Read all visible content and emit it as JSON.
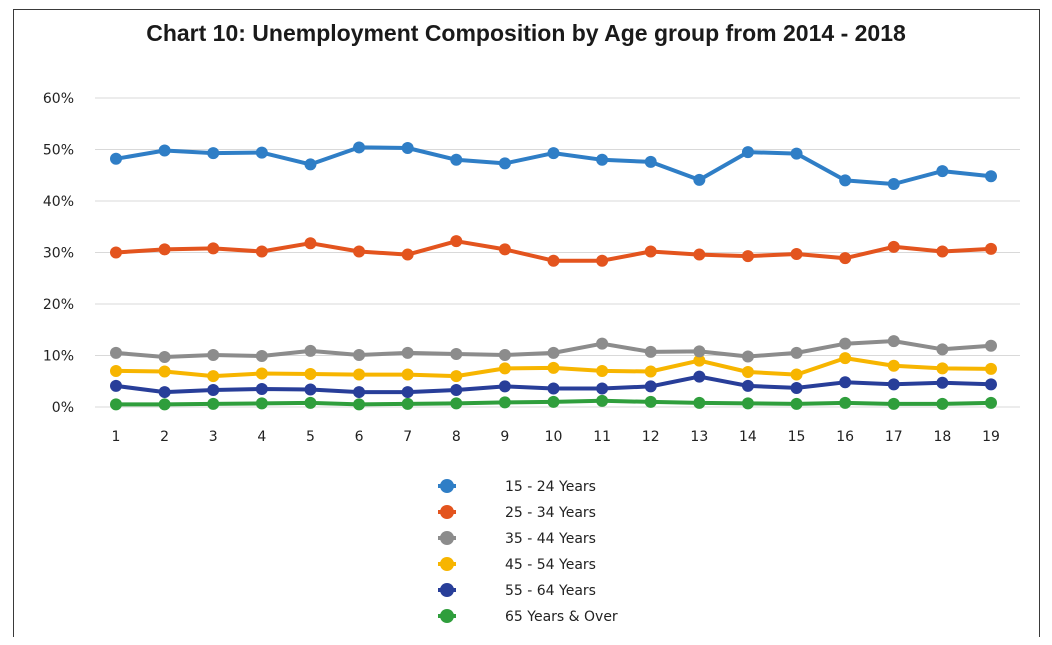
{
  "chart_data": {
    "type": "line",
    "title": "Chart 10: Unemployment Composition by Age group from 2014 - 2018",
    "xlabel": "",
    "ylabel": "",
    "x": [
      1,
      2,
      3,
      4,
      5,
      6,
      7,
      8,
      9,
      10,
      11,
      12,
      13,
      14,
      15,
      16,
      17,
      18,
      19
    ],
    "y_ticks": [
      "0%",
      "10%",
      "20%",
      "30%",
      "40%",
      "50%",
      "60%"
    ],
    "ylim": [
      0,
      60
    ],
    "grid": true,
    "legend_position": "bottom",
    "series": [
      {
        "name": "15 - 24 Years",
        "color": "#2f7ec6",
        "values": [
          48.2,
          49.8,
          49.3,
          49.4,
          47.1,
          50.4,
          50.3,
          48.0,
          47.3,
          49.3,
          48.0,
          47.6,
          44.1,
          49.5,
          49.2,
          44.0,
          43.3,
          45.8,
          44.8
        ]
      },
      {
        "name": "25 - 34 Years",
        "color": "#e3541e",
        "values": [
          30.0,
          30.6,
          30.8,
          30.2,
          31.8,
          30.2,
          29.6,
          32.2,
          30.6,
          28.4,
          28.4,
          30.2,
          29.6,
          29.3,
          29.7,
          28.9,
          31.1,
          30.2,
          30.7
        ]
      },
      {
        "name": "35 - 44 Years",
        "color": "#8c8c8c",
        "values": [
          10.5,
          9.7,
          10.1,
          9.9,
          10.9,
          10.1,
          10.5,
          10.3,
          10.1,
          10.5,
          12.3,
          10.7,
          10.8,
          9.8,
          10.5,
          12.3,
          12.8,
          11.2,
          11.9
        ]
      },
      {
        "name": "45 - 54 Years",
        "color": "#f7b500",
        "values": [
          7.0,
          6.9,
          6.0,
          6.5,
          6.4,
          6.3,
          6.3,
          6.0,
          7.5,
          7.6,
          7.0,
          6.9,
          9.0,
          6.8,
          6.3,
          9.5,
          8.0,
          7.5,
          7.4
        ]
      },
      {
        "name": "55 - 64 Years",
        "color": "#283e99",
        "values": [
          4.1,
          2.9,
          3.3,
          3.5,
          3.4,
          2.9,
          2.9,
          3.3,
          4.0,
          3.6,
          3.6,
          4.0,
          5.9,
          4.1,
          3.7,
          4.8,
          4.4,
          4.7,
          4.4
        ]
      },
      {
        "name": "65 Years & Over",
        "color": "#2f9e3c",
        "values": [
          0.5,
          0.5,
          0.6,
          0.7,
          0.8,
          0.5,
          0.6,
          0.7,
          0.9,
          1.0,
          1.2,
          1.0,
          0.8,
          0.7,
          0.6,
          0.8,
          0.6,
          0.6,
          0.8
        ]
      }
    ]
  }
}
